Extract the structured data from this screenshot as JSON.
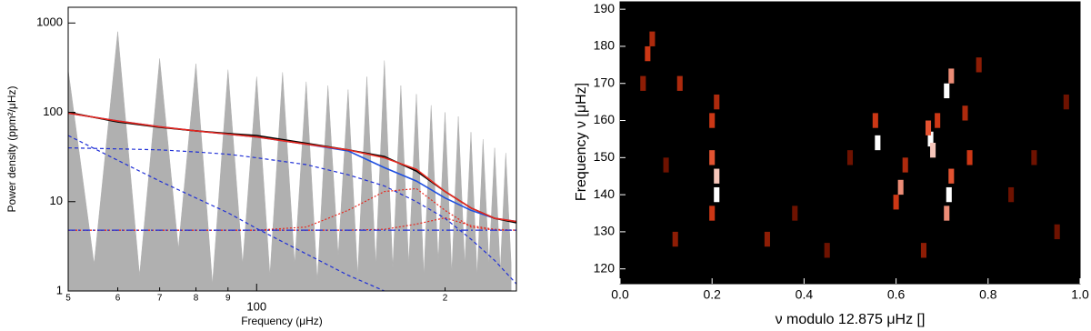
{
  "chart_data": [
    {
      "type": "line",
      "xlog": true,
      "ylog": true,
      "xlabel": "Frequency (μHz)",
      "ylabel": "Power density (ppm²/μHz)",
      "xlim": [
        50,
        260
      ],
      "ylim": [
        1,
        1500
      ],
      "xticks": [
        {
          "value": 50,
          "label": "5"
        },
        {
          "value": 60,
          "label": "6"
        },
        {
          "value": 70,
          "label": "7"
        },
        {
          "value": 80,
          "label": "8"
        },
        {
          "value": 90,
          "label": "9"
        },
        100,
        {
          "value": 200,
          "label": "2"
        }
      ],
      "yticks": [
        1,
        10,
        100,
        1000
      ],
      "x": [
        50,
        60,
        70,
        80,
        90,
        100,
        120,
        140,
        160,
        180,
        200,
        220,
        240,
        260
      ],
      "series": [
        {
          "style": "area",
          "color": "#b0b0b0",
          "x": [
            50,
            55,
            60,
            65,
            70,
            75,
            80,
            85,
            90,
            95,
            100,
            105,
            110,
            115,
            120,
            125,
            130,
            135,
            140,
            145,
            150,
            155,
            160,
            165,
            170,
            175,
            180,
            185,
            190,
            195,
            200,
            205,
            210,
            215,
            220,
            225,
            230,
            235,
            240,
            245,
            250,
            255
          ],
          "values": [
            300,
            2,
            800,
            1.5,
            400,
            3,
            350,
            1.2,
            300,
            2,
            250,
            1.5,
            280,
            2,
            220,
            1.3,
            200,
            2.5,
            180,
            1.5,
            250,
            2,
            380,
            1.8,
            200,
            2,
            160,
            1.5,
            120,
            2.2,
            100,
            1.6,
            90,
            2,
            60,
            1.5,
            50,
            2,
            40,
            1.7,
            35,
            2
          ]
        },
        {
          "style": "dashed",
          "color": "#1f2fd6",
          "values": [
            55,
            29,
            17,
            11,
            7.5,
            5,
            2.6,
            1.5,
            1,
            null,
            null,
            null,
            null,
            null
          ]
        },
        {
          "style": "dashed",
          "color": "#1f2fd6",
          "values": [
            40,
            39,
            38,
            36,
            34,
            31,
            26,
            20,
            15,
            10,
            6.5,
            3.8,
            2.2,
            1.2
          ]
        },
        {
          "style": "dotted",
          "color": "#e8281e",
          "values": [
            4.8,
            4.8,
            4.8,
            4.8,
            4.8,
            4.8,
            5.2,
            8,
            13,
            14,
            8,
            5.2,
            4.8,
            4.8
          ]
        },
        {
          "style": "dotted",
          "color": "#e8281e",
          "values": [
            4.8,
            4.8,
            4.8,
            4.8,
            4.8,
            4.8,
            4.8,
            4.8,
            4.9,
            5.6,
            6.6,
            5.4,
            4.9,
            4.8
          ]
        },
        {
          "style": "dashdot",
          "color": "#1f2fd6",
          "values": [
            4.8,
            4.8,
            4.8,
            4.8,
            4.8,
            4.8,
            4.8,
            4.8,
            4.8,
            4.8,
            4.8,
            4.8,
            4.8,
            4.8
          ]
        },
        {
          "style": "solid",
          "color": "#1f4fe0",
          "values": [
            98,
            80,
            69,
            62,
            57,
            53,
            44,
            37,
            24,
            17,
            11,
            8,
            6.5,
            6
          ]
        },
        {
          "style": "solid",
          "color": "#000000",
          "values": [
            100,
            78,
            68,
            62,
            58,
            55,
            45,
            38,
            32,
            22,
            13,
            8.5,
            6.5,
            5.8
          ]
        },
        {
          "style": "solid",
          "color": "#e8281e",
          "values": [
            98,
            80,
            69,
            62,
            57,
            53,
            44,
            38,
            31,
            23,
            13,
            8.5,
            6.5,
            6
          ]
        }
      ]
    },
    {
      "type": "heatmap",
      "xlabel": "ν modulo 12.875 μHz []",
      "ylabel": "Frequency ν [μHz]",
      "xlim": [
        0,
        1
      ],
      "ylim": [
        116,
        192
      ],
      "xticks": [
        {
          "value": 0,
          "label": "0.0"
        },
        0.2,
        0.4,
        0.6,
        0.8,
        {
          "value": 1,
          "label": "1.0"
        }
      ],
      "yticks": [
        120,
        130,
        140,
        150,
        160,
        170,
        180,
        190
      ],
      "colormap": [
        "#000000",
        "#7a1400",
        "#e0401a",
        "#ffffff"
      ],
      "points": {
        "x": [
          0.21,
          0.21,
          0.2,
          0.2,
          0.2,
          0.21,
          0.56,
          0.555,
          0.61,
          0.62,
          0.6,
          0.675,
          0.68,
          0.67,
          0.69,
          0.71,
          0.72,
          0.715,
          0.71,
          0.72,
          0.76,
          0.75,
          0.78,
          0.06,
          0.07,
          0.05,
          0.1,
          0.13,
          0.12,
          0.32,
          0.38,
          0.45,
          0.5,
          0.9,
          0.85,
          0.95,
          0.66,
          0.97
        ],
        "y": [
          140,
          145,
          150,
          160,
          135,
          165,
          154,
          160,
          142,
          148,
          138,
          155,
          152,
          158,
          160,
          168,
          172,
          140,
          135,
          145,
          150,
          162,
          175,
          178,
          182,
          170,
          148,
          170,
          128,
          128,
          135,
          125,
          150,
          150,
          140,
          130,
          125,
          165
        ],
        "values": [
          1,
          0.9,
          0.7,
          0.6,
          0.6,
          0.5,
          1,
          0.6,
          0.8,
          0.5,
          0.6,
          1,
          0.9,
          0.7,
          0.6,
          1,
          0.8,
          1,
          0.8,
          0.7,
          0.6,
          0.5,
          0.4,
          0.6,
          0.5,
          0.4,
          0.3,
          0.5,
          0.4,
          0.4,
          0.3,
          0.3,
          0.3,
          0.3,
          0.3,
          0.3,
          0.4,
          0.3
        ]
      }
    }
  ]
}
